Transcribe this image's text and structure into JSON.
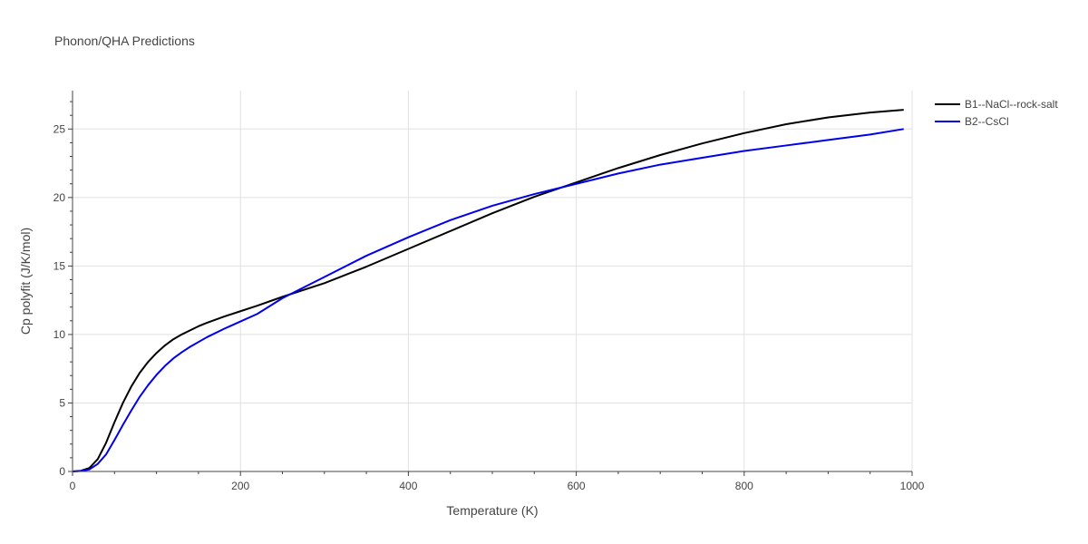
{
  "chart_data": {
    "type": "line",
    "title": "Phonon/QHA Predictions",
    "xlabel": "Temperature (K)",
    "ylabel": "Cp polyfit (J/K/mol)",
    "xlim": [
      0,
      1000
    ],
    "ylim": [
      0,
      27.8
    ],
    "x_ticks": [
      0,
      200,
      400,
      600,
      800,
      1000
    ],
    "y_ticks": [
      0,
      5,
      10,
      15,
      20,
      25
    ],
    "grid": true,
    "legend_position": "top-right",
    "series": [
      {
        "name": "B1--NaCl--rock-salt",
        "color": "#000000",
        "x": [
          0,
          10,
          20,
          30,
          40,
          50,
          60,
          70,
          80,
          90,
          100,
          110,
          120,
          130,
          140,
          150,
          160,
          180,
          200,
          220,
          250,
          300,
          350,
          400,
          450,
          500,
          550,
          600,
          650,
          700,
          750,
          800,
          850,
          900,
          950,
          990
        ],
        "y": [
          0,
          0.05,
          0.25,
          0.9,
          2.1,
          3.6,
          5.0,
          6.2,
          7.2,
          8.0,
          8.65,
          9.2,
          9.65,
          10.0,
          10.3,
          10.6,
          10.85,
          11.3,
          11.7,
          12.1,
          12.75,
          13.75,
          14.95,
          16.25,
          17.55,
          18.85,
          20.05,
          21.1,
          22.15,
          23.1,
          23.95,
          24.7,
          25.35,
          25.85,
          26.2,
          26.4
        ]
      },
      {
        "name": "B2--CsCl",
        "color": "#0000ee",
        "x": [
          0,
          10,
          20,
          30,
          40,
          50,
          60,
          70,
          80,
          90,
          100,
          110,
          120,
          130,
          140,
          160,
          180,
          200,
          220,
          250,
          300,
          350,
          400,
          450,
          500,
          550,
          600,
          650,
          700,
          750,
          800,
          850,
          900,
          950,
          990
        ],
        "y": [
          0,
          0.03,
          0.15,
          0.55,
          1.25,
          2.3,
          3.4,
          4.45,
          5.45,
          6.3,
          7.05,
          7.7,
          8.25,
          8.7,
          9.1,
          9.8,
          10.4,
          10.95,
          11.5,
          12.65,
          14.2,
          15.75,
          17.1,
          18.35,
          19.4,
          20.25,
          21.0,
          21.75,
          22.4,
          22.9,
          23.4,
          23.8,
          24.2,
          24.6,
          25.0
        ]
      }
    ]
  }
}
